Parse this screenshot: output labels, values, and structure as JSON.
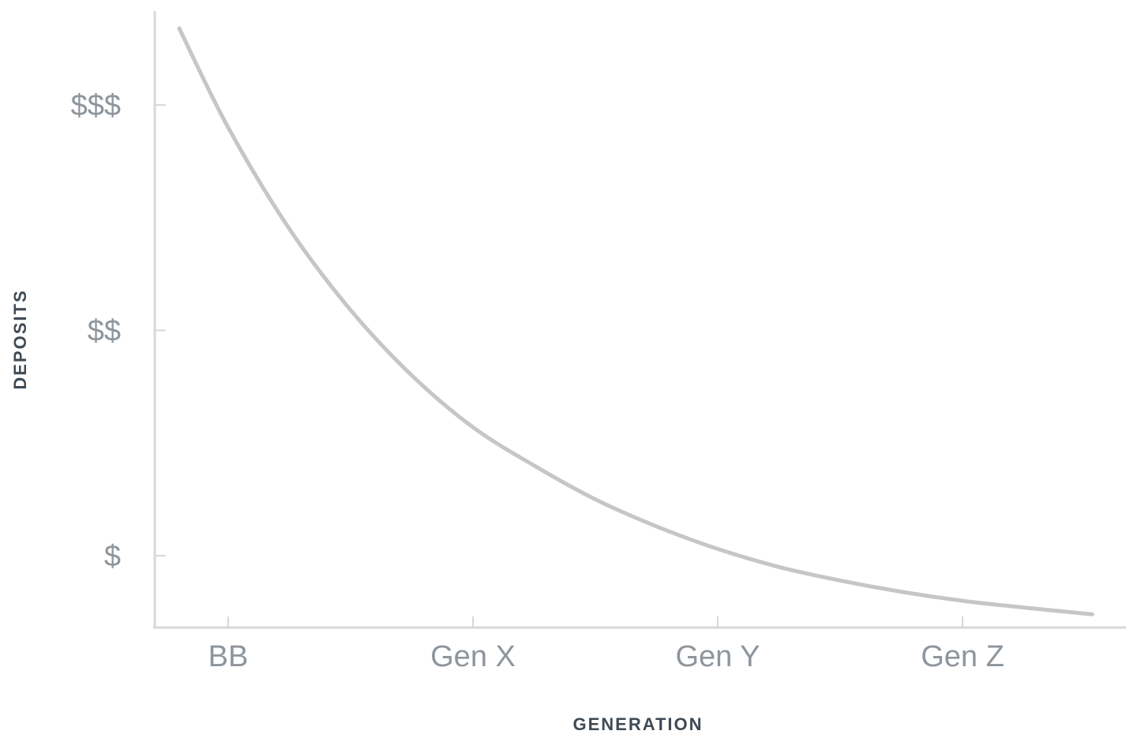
{
  "chart_data": {
    "type": "line",
    "xlabel": "GENERATION",
    "ylabel": "DEPOSITS",
    "categories": [
      "BB",
      "Gen X",
      "Gen Y",
      "Gen Z"
    ],
    "y_ticks": [
      {
        "label": "$",
        "value": 1
      },
      {
        "label": "$$",
        "value": 2
      },
      {
        "label": "$$$",
        "value": 3
      }
    ],
    "ylim": [
      0.7,
      3.4
    ],
    "grid": false,
    "series": [
      {
        "color": "#c4c6c8",
        "points": [
          {
            "x": -0.2,
            "y": 3.34
          },
          {
            "x": 0.0,
            "y": 2.9
          },
          {
            "x": 0.25,
            "y": 2.45
          },
          {
            "x": 0.5,
            "y": 2.09
          },
          {
            "x": 0.75,
            "y": 1.8
          },
          {
            "x": 1.0,
            "y": 1.57
          },
          {
            "x": 1.25,
            "y": 1.4
          },
          {
            "x": 1.5,
            "y": 1.25
          },
          {
            "x": 1.75,
            "y": 1.13
          },
          {
            "x": 2.0,
            "y": 1.03
          },
          {
            "x": 2.25,
            "y": 0.95
          },
          {
            "x": 2.5,
            "y": 0.89
          },
          {
            "x": 2.75,
            "y": 0.84
          },
          {
            "x": 3.0,
            "y": 0.8
          },
          {
            "x": 3.25,
            "y": 0.77
          },
          {
            "x": 3.53,
            "y": 0.74
          }
        ]
      }
    ]
  }
}
